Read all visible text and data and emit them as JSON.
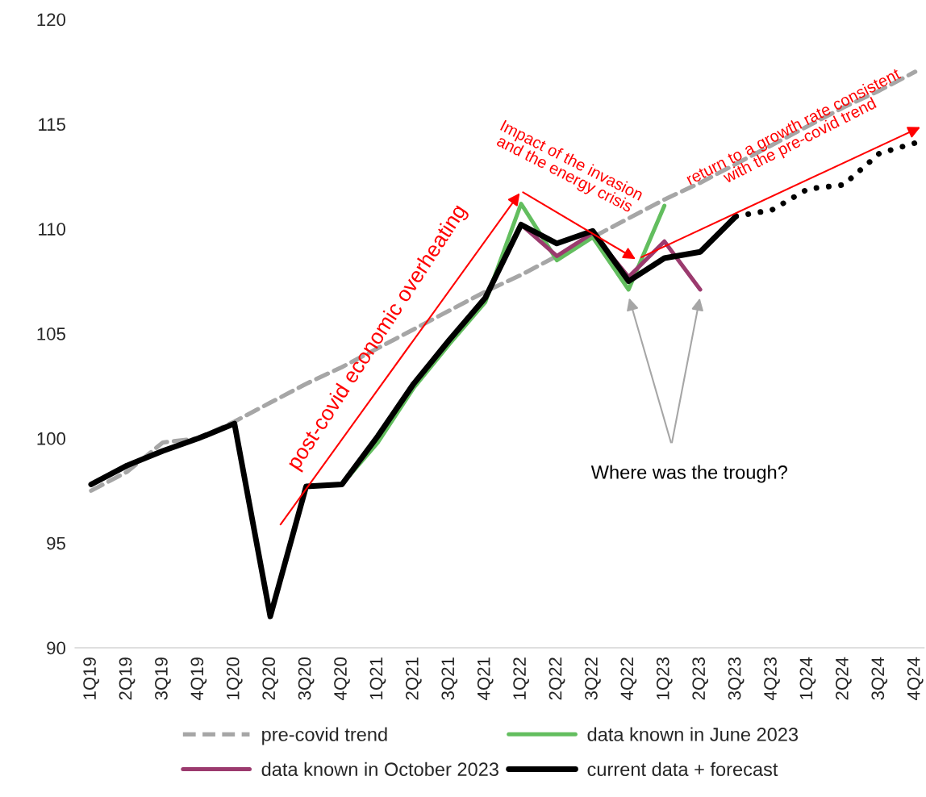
{
  "chart_data": {
    "type": "line",
    "categories": [
      "1Q19",
      "2Q19",
      "3Q19",
      "4Q19",
      "1Q20",
      "2Q20",
      "3Q20",
      "4Q20",
      "1Q21",
      "2Q21",
      "3Q21",
      "4Q21",
      "1Q22",
      "2Q22",
      "3Q22",
      "4Q22",
      "1Q23",
      "2Q23",
      "3Q23",
      "4Q23",
      "1Q24",
      "2Q24",
      "3Q24",
      "4Q24"
    ],
    "series": [
      {
        "name": "pre-covid trend",
        "color": "#a6a6a6",
        "line_style": "dashed",
        "values": [
          97.5,
          98.4,
          99.8,
          100.0,
          100.8,
          101.7,
          102.6,
          103.4,
          104.3,
          105.2,
          106.1,
          107.0,
          107.8,
          108.7,
          109.6,
          110.5,
          111.4,
          112.2,
          113.1,
          114.0,
          114.9,
          115.8,
          116.6,
          117.5
        ]
      },
      {
        "name": "data known in June 2023",
        "color": "#63be5f",
        "line_style": "solid",
        "values": [
          null,
          null,
          null,
          null,
          null,
          null,
          null,
          97.8,
          99.8,
          102.4,
          104.5,
          106.5,
          111.2,
          108.5,
          109.6,
          107.1,
          111.1,
          null,
          null,
          null,
          null,
          null,
          null,
          null
        ]
      },
      {
        "name": "data known in October 2023",
        "color": "#9b3a6e",
        "line_style": "solid",
        "values": [
          null,
          null,
          null,
          null,
          null,
          null,
          null,
          null,
          null,
          null,
          null,
          null,
          110.2,
          108.7,
          109.8,
          107.7,
          109.4,
          107.1,
          null,
          null,
          null,
          null,
          null,
          null
        ]
      },
      {
        "name": "current data + forecast",
        "color": "#000000",
        "line_style": "solid",
        "values": [
          97.8,
          98.7,
          99.4,
          100.0,
          100.7,
          91.5,
          97.7,
          97.8,
          100.1,
          102.6,
          104.7,
          106.7,
          110.2,
          109.3,
          109.9,
          107.5,
          108.6,
          108.9,
          110.6,
          null,
          null,
          null,
          null,
          null
        ]
      },
      {
        "color": "#000000",
        "line_style": "dotted",
        "values": [
          null,
          null,
          null,
          null,
          null,
          null,
          null,
          null,
          null,
          null,
          null,
          null,
          null,
          null,
          null,
          null,
          null,
          null,
          110.6,
          110.9,
          111.9,
          112.1,
          113.6,
          114.1
        ]
      }
    ],
    "ylim": [
      90,
      120
    ],
    "yticks": [
      90,
      95,
      100,
      105,
      110,
      115,
      120
    ],
    "grid": false,
    "legend": "bottom",
    "annotations": [
      "post-covid economic overheating",
      "Impact of the invasion\nand the energy crisis",
      "return to a growth rate consistent\nwith the pre-covid trend",
      "Where was the trough?"
    ]
  }
}
